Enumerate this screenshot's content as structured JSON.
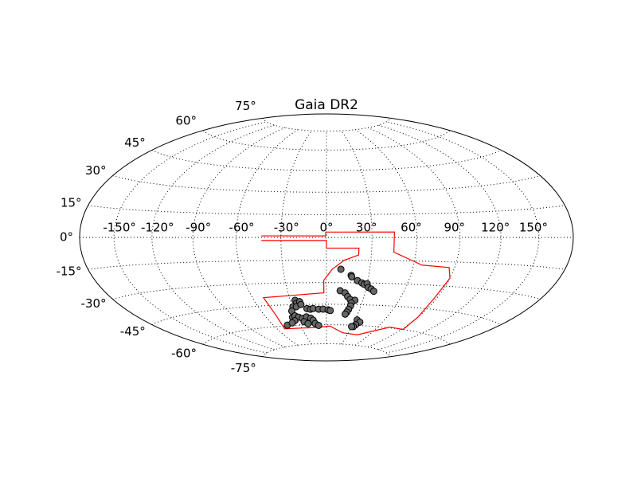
{
  "chart_data": {
    "type": "scatter",
    "projection": "hammer",
    "title": "Gaia DR2",
    "grid": true,
    "xlim": [
      -180,
      180
    ],
    "ylim": [
      -90,
      90
    ],
    "xticks": [
      {
        "value": -150,
        "label": "-150°"
      },
      {
        "value": -120,
        "label": "-120°"
      },
      {
        "value": -90,
        "label": "-90°"
      },
      {
        "value": -60,
        "label": "-60°"
      },
      {
        "value": -30,
        "label": "-30°"
      },
      {
        "value": 0,
        "label": "0°"
      },
      {
        "value": 30,
        "label": "30°"
      },
      {
        "value": 60,
        "label": "60°"
      },
      {
        "value": 90,
        "label": "90°"
      },
      {
        "value": 120,
        "label": "120°"
      },
      {
        "value": 150,
        "label": "150°"
      }
    ],
    "yticks": [
      {
        "value": -75,
        "label": "-75°"
      },
      {
        "value": -60,
        "label": "-60°"
      },
      {
        "value": -45,
        "label": "-45°"
      },
      {
        "value": -30,
        "label": "-30°"
      },
      {
        "value": -15,
        "label": "-15°"
      },
      {
        "value": 0,
        "label": "0°"
      },
      {
        "value": 15,
        "label": "15°"
      },
      {
        "value": 30,
        "label": "30°"
      },
      {
        "value": 45,
        "label": "45°"
      },
      {
        "value": 60,
        "label": "60°"
      },
      {
        "value": 75,
        "label": "75°"
      }
    ],
    "series": [
      {
        "color": "#666666",
        "edgecolor": "#000000",
        "x": [
          10,
          17.5,
          18,
          22.5,
          26,
          28,
          30,
          31.5,
          34,
          36.5,
          10.5,
          14.5,
          17,
          19.5,
          23.5,
          21,
          21,
          20,
          19,
          18,
          32,
          36,
          33,
          31.5,
          29.5,
          -26,
          -25.5,
          -22.5,
          -29.5,
          -32,
          -26.5,
          -22,
          -17.5,
          -14.5,
          -12,
          -7,
          -3,
          1.5,
          3.5,
          -34,
          -31,
          -28,
          -24.5,
          -20,
          -16,
          -14,
          -12.5,
          -9,
          -24,
          -20.5,
          -33.5,
          -44.5,
          -37.5
        ],
        "y": [
          -21,
          -25,
          -26,
          -28.5,
          -30,
          -31,
          -30.5,
          -33,
          -34,
          -35.5,
          -35.5,
          -37,
          -39.5,
          -41.5,
          -42,
          -44,
          -46,
          -48.5,
          -50.5,
          -52,
          -56,
          -57.5,
          -59.5,
          -61,
          -61,
          -42,
          -44,
          -43,
          -46.5,
          -49.5,
          -46.5,
          -45,
          -48,
          -48.5,
          -48,
          -48.5,
          -48.5,
          -49,
          -49.5,
          -54,
          -53,
          -54,
          -55,
          -54,
          -55,
          -56.5,
          -59,
          -60.5,
          -57.5,
          -59,
          -56.5,
          -59.5,
          -58
        ]
      }
    ],
    "footprint": {
      "color": "#ff0000",
      "lon": [
        -43,
        -0.5,
        -0.5,
        45,
        45,
        66,
        86,
        90,
        88,
        90,
        92,
        74,
        57,
        44,
        22,
        4,
        -11,
        -51,
        -49,
        -51,
        -2,
        -2,
        4,
        12,
        21.5,
        21.5,
        0,
        0,
        -43
      ],
      "lat": [
        1,
        1,
        3.5,
        3.5,
        -9.5,
        -17.5,
        -18.5,
        -25,
        -37.5,
        -51,
        -60,
        -59.5,
        -64,
        -67,
        -66,
        -61,
        -62,
        -62,
        -51.5,
        -39.5,
        -37,
        -28.5,
        -21,
        -15,
        -11.5,
        -7,
        -7,
        -2,
        -2
      ]
    }
  }
}
